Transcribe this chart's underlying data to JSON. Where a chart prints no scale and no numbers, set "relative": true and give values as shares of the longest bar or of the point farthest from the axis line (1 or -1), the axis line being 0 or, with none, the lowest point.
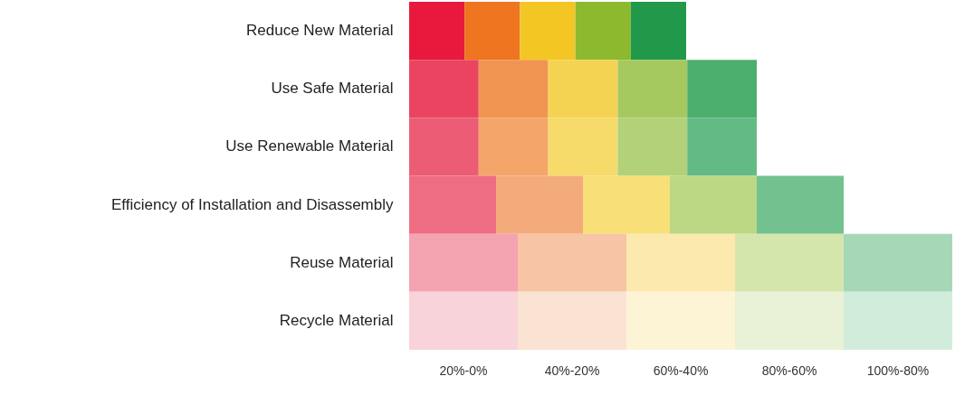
{
  "chart_data": {
    "type": "bar",
    "orientation": "horizontal",
    "stacked": true,
    "relative": true,
    "legend": "bottom",
    "categories": [
      "Reduce New Material",
      "Use Safe Material",
      "Use Renewable Material",
      "Efficiency of Installation and Disassembly",
      "Reuse Material",
      "Recycle Material"
    ],
    "series": [
      {
        "name": "20%-0%",
        "colors": [
          "#e8193c",
          "#ea4460",
          "#ec5c75",
          "#ef6d82",
          "#f4a3b1",
          "#f9d3da"
        ],
        "values": [
          0.102,
          0.128,
          0.128,
          0.16,
          0.2,
          0.2
        ]
      },
      {
        "name": "40%-20%",
        "colors": [
          "#ef7520",
          "#f09550",
          "#f3a56a",
          "#f4ab7c",
          "#f7c4a5",
          "#fbe3d3"
        ],
        "values": [
          0.102,
          0.128,
          0.128,
          0.16,
          0.2,
          0.2
        ]
      },
      {
        "name": "60%-40%",
        "colors": [
          "#f4c623",
          "#f5d352",
          "#f6da6a",
          "#f8df78",
          "#fbe9ae",
          "#fdf4d6"
        ],
        "values": [
          0.102,
          0.128,
          0.128,
          0.16,
          0.2,
          0.2
        ]
      },
      {
        "name": "80%-60%",
        "colors": [
          "#8cb92e",
          "#a5c95e",
          "#b2d178",
          "#bcd884",
          "#d5e6ad",
          "#e9f2d6"
        ],
        "values": [
          0.102,
          0.128,
          0.128,
          0.16,
          0.2,
          0.2
        ]
      },
      {
        "name": "100%-80%",
        "colors": [
          "#22994a",
          "#4caf6e",
          "#64ba85",
          "#74c190",
          "#a6d8b7",
          "#d2ecdc"
        ],
        "values": [
          0.102,
          0.128,
          0.128,
          0.16,
          0.2,
          0.2
        ]
      }
    ]
  }
}
